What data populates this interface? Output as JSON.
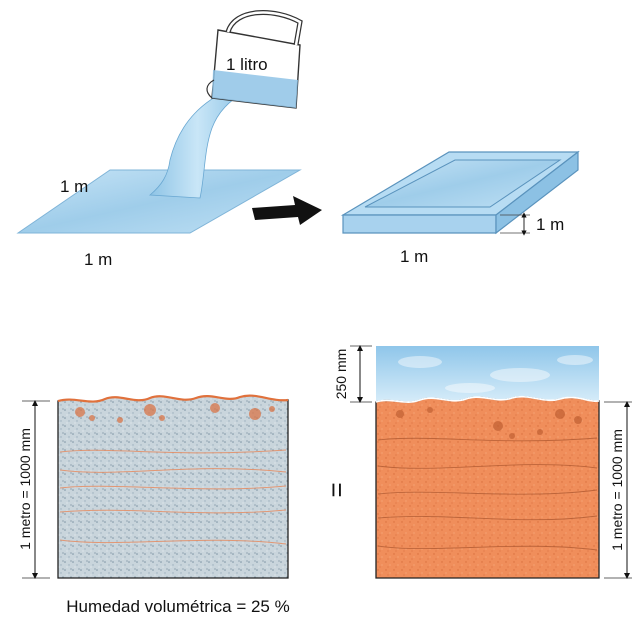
{
  "pour": {
    "jug_label": "1 litro",
    "sheet_side_label": "1 m",
    "sheet_bottom_label": "1 m"
  },
  "box": {
    "height_label": "1 m",
    "bottom_label": "1 m"
  },
  "soil": {
    "left_height_label": "1 metro = 1000 mm",
    "equals_sign": "=",
    "water_depth_label": "250 mm",
    "right_height_label": "1 metro = 1000 mm",
    "caption": "Humedad volumétrica = 25 %"
  },
  "colors": {
    "water": "#a9d3ee",
    "water_dark": "#6fb0dc",
    "soil_orange": "#f0905e",
    "soil_grey": "#c7d3da"
  }
}
